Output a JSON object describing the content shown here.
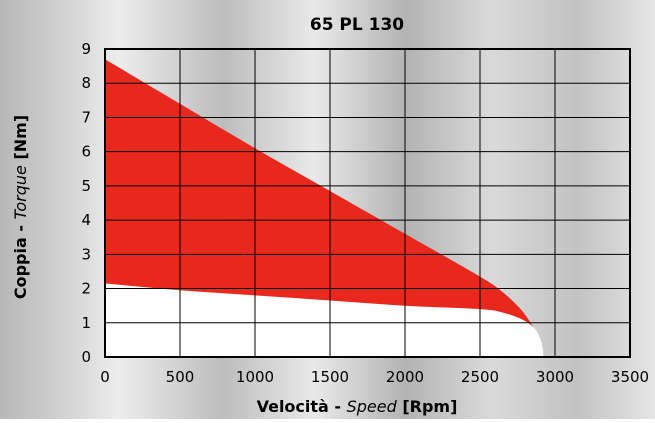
{
  "chart_data": {
    "type": "area",
    "title": "65 PL 130",
    "xlabel": {
      "prefix": "Velocità - ",
      "italic": "Speed",
      "suffix": " [Rpm]"
    },
    "ylabel": {
      "prefix": "Coppia - ",
      "italic": "Torque",
      "suffix": " [Nm]"
    },
    "xlim": [
      0,
      3500
    ],
    "ylim": [
      0,
      9
    ],
    "x_ticks": [
      "0",
      "500",
      "1000",
      "1500",
      "2000",
      "2500",
      "3000",
      "3500"
    ],
    "y_ticks": [
      "0",
      "1",
      "2",
      "3",
      "4",
      "5",
      "6",
      "7",
      "8",
      "9"
    ],
    "grid": true,
    "series": [
      {
        "role": "upper-boundary",
        "color": "#e8281c",
        "points": [
          [
            0,
            8.7
          ],
          [
            500,
            7.4
          ],
          [
            1000,
            6.1
          ],
          [
            1500,
            4.85
          ],
          [
            2000,
            3.6
          ],
          [
            2500,
            2.35
          ],
          [
            2650,
            1.9
          ],
          [
            2760,
            1.45
          ],
          [
            2830,
            1.05
          ],
          [
            2880,
            0.65
          ]
        ]
      },
      {
        "role": "lower-boundary",
        "color": "#ffffff",
        "points": [
          [
            0,
            2.15
          ],
          [
            500,
            1.95
          ],
          [
            1000,
            1.8
          ],
          [
            1500,
            1.65
          ],
          [
            2000,
            1.5
          ],
          [
            2500,
            1.4
          ],
          [
            2650,
            1.3
          ],
          [
            2780,
            1.1
          ],
          [
            2860,
            0.85
          ],
          [
            2900,
            0.55
          ],
          [
            2920,
            0.2
          ],
          [
            2920,
            0
          ]
        ]
      }
    ]
  }
}
